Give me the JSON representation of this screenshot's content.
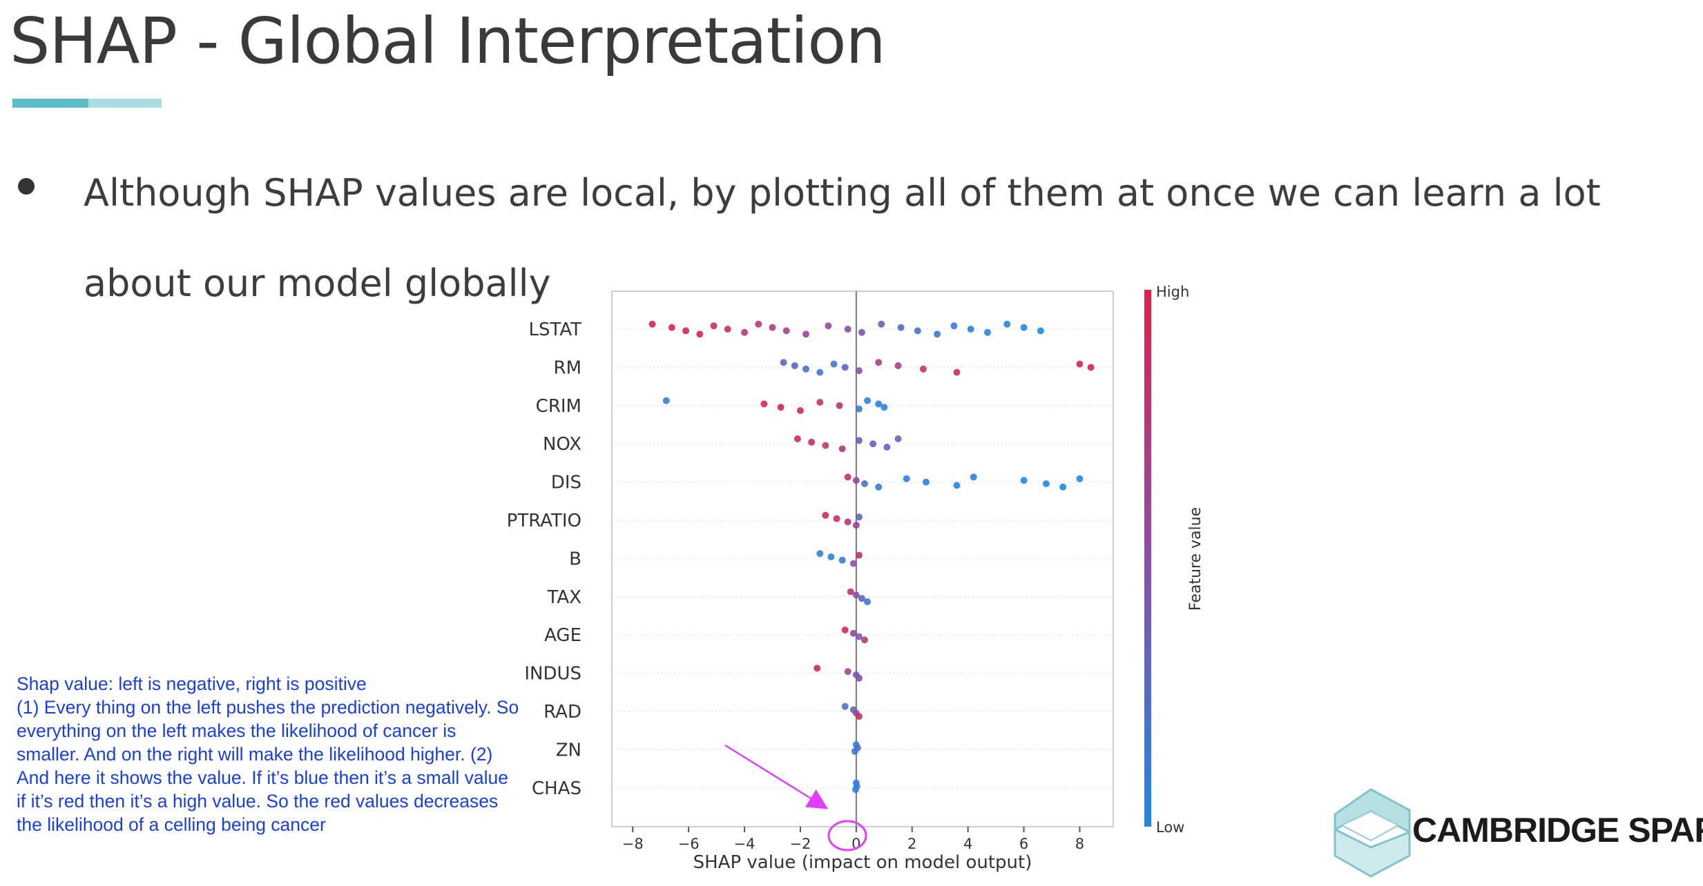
{
  "slide": {
    "title": "SHAP - Global Interpretation",
    "bullet": "Although SHAP values are local, by plotting all of them at once we can learn a lot about our model globally",
    "notes": "Shap value: left is negative, right is positive\n(1) Every thing on the left pushes the prediction negatively. So everything on the left makes the likelihood of cancer is smaller. And on the right will make the likelihood higher. (2) And here it shows the value. If it’s blue then it’s a small value if it’s red then it’s a high value. So the red values decreases the likelihood of a celling being cancer",
    "logo_text": "CAMBRIDGE SPARK"
  },
  "colors": {
    "accent": "#5bbbc6",
    "accent_light": "#a9dde3",
    "high": "#e0204a",
    "low": "#1e88e5",
    "annotation": "#e040fb",
    "notes_text": "#1a3fe0"
  },
  "chart_data": {
    "type": "scatter",
    "subtype": "shap-beeswarm",
    "xlabel": "SHAP value (impact on model output)",
    "xlim": [
      -8.5,
      9.2
    ],
    "xticks": [
      -8,
      -6,
      -4,
      -2,
      0,
      2,
      4,
      6,
      8
    ],
    "xtick_labels": [
      "−8",
      "−6",
      "−4",
      "−2",
      "0",
      "2",
      "4",
      "6",
      "8"
    ],
    "colorbar": {
      "label": "Feature value",
      "high_label": "High",
      "low_label": "Low"
    },
    "features": [
      {
        "name": "LSTAT",
        "points": [
          {
            "x": -7.3,
            "v": 1
          },
          {
            "x": -6.6,
            "v": 0.95
          },
          {
            "x": -6.1,
            "v": 0.95
          },
          {
            "x": -5.6,
            "v": 0.9
          },
          {
            "x": -5.1,
            "v": 0.9
          },
          {
            "x": -4.6,
            "v": 0.85
          },
          {
            "x": -4.0,
            "v": 0.8
          },
          {
            "x": -3.5,
            "v": 0.75
          },
          {
            "x": -3.0,
            "v": 0.7
          },
          {
            "x": -2.5,
            "v": 0.65
          },
          {
            "x": -1.8,
            "v": 0.6
          },
          {
            "x": -1.0,
            "v": 0.55
          },
          {
            "x": -0.3,
            "v": 0.5
          },
          {
            "x": 0.2,
            "v": 0.4
          },
          {
            "x": 0.9,
            "v": 0.35
          },
          {
            "x": 1.6,
            "v": 0.25
          },
          {
            "x": 2.2,
            "v": 0.2
          },
          {
            "x": 2.9,
            "v": 0.15
          },
          {
            "x": 3.5,
            "v": 0.1
          },
          {
            "x": 4.1,
            "v": 0.08
          },
          {
            "x": 4.7,
            "v": 0.05
          },
          {
            "x": 5.4,
            "v": 0.03
          },
          {
            "x": 6.0,
            "v": 0.02
          },
          {
            "x": 6.6,
            "v": 0
          }
        ]
      },
      {
        "name": "RM",
        "points": [
          {
            "x": -2.6,
            "v": 0.3
          },
          {
            "x": -2.2,
            "v": 0.25
          },
          {
            "x": -1.8,
            "v": 0.2
          },
          {
            "x": -1.3,
            "v": 0.15
          },
          {
            "x": -0.8,
            "v": 0.2
          },
          {
            "x": -0.4,
            "v": 0.3
          },
          {
            "x": 0.1,
            "v": 0.45
          },
          {
            "x": 0.8,
            "v": 0.6
          },
          {
            "x": 1.5,
            "v": 0.7
          },
          {
            "x": 2.4,
            "v": 0.8
          },
          {
            "x": 3.6,
            "v": 0.85
          },
          {
            "x": 8.0,
            "v": 0.95
          },
          {
            "x": 8.4,
            "v": 1
          }
        ]
      },
      {
        "name": "CRIM",
        "points": [
          {
            "x": -6.8,
            "v": 0.1
          },
          {
            "x": -3.3,
            "v": 0.9
          },
          {
            "x": -2.7,
            "v": 0.9
          },
          {
            "x": -2.0,
            "v": 0.85
          },
          {
            "x": -1.3,
            "v": 0.8
          },
          {
            "x": -0.6,
            "v": 0.75
          },
          {
            "x": 0.1,
            "v": 0.1
          },
          {
            "x": 0.4,
            "v": 0.05
          },
          {
            "x": 0.8,
            "v": 0.05
          },
          {
            "x": 1.0,
            "v": 0.05
          }
        ]
      },
      {
        "name": "NOX",
        "points": [
          {
            "x": -2.1,
            "v": 0.9
          },
          {
            "x": -1.6,
            "v": 0.85
          },
          {
            "x": -1.1,
            "v": 0.8
          },
          {
            "x": -0.5,
            "v": 0.7
          },
          {
            "x": 0.1,
            "v": 0.4
          },
          {
            "x": 0.6,
            "v": 0.3
          },
          {
            "x": 1.1,
            "v": 0.3
          },
          {
            "x": 1.5,
            "v": 0.35
          }
        ]
      },
      {
        "name": "DIS",
        "points": [
          {
            "x": -0.3,
            "v": 0.85
          },
          {
            "x": 0.0,
            "v": 0.6
          },
          {
            "x": 0.3,
            "v": 0.2
          },
          {
            "x": 0.8,
            "v": 0.1
          },
          {
            "x": 1.8,
            "v": 0.05
          },
          {
            "x": 2.5,
            "v": 0.05
          },
          {
            "x": 3.6,
            "v": 0.05
          },
          {
            "x": 4.2,
            "v": 0.05
          },
          {
            "x": 6.0,
            "v": 0
          },
          {
            "x": 6.8,
            "v": 0
          },
          {
            "x": 7.4,
            "v": 0
          },
          {
            "x": 8.0,
            "v": 0
          }
        ]
      },
      {
        "name": "PTRATIO",
        "points": [
          {
            "x": -1.1,
            "v": 0.9
          },
          {
            "x": -0.7,
            "v": 0.85
          },
          {
            "x": -0.3,
            "v": 0.8
          },
          {
            "x": 0.0,
            "v": 0.6
          },
          {
            "x": 0.1,
            "v": 0.3
          }
        ]
      },
      {
        "name": "B",
        "points": [
          {
            "x": -1.3,
            "v": 0.05
          },
          {
            "x": -0.9,
            "v": 0.05
          },
          {
            "x": -0.5,
            "v": 0.1
          },
          {
            "x": -0.1,
            "v": 0.5
          },
          {
            "x": 0.1,
            "v": 0.8
          }
        ]
      },
      {
        "name": "TAX",
        "points": [
          {
            "x": -0.2,
            "v": 0.8
          },
          {
            "x": 0.0,
            "v": 0.5
          },
          {
            "x": 0.2,
            "v": 0.3
          },
          {
            "x": 0.4,
            "v": 0.15
          }
        ]
      },
      {
        "name": "AGE",
        "points": [
          {
            "x": -0.4,
            "v": 0.9
          },
          {
            "x": -0.1,
            "v": 0.6
          },
          {
            "x": 0.1,
            "v": 0.4
          },
          {
            "x": 0.3,
            "v": 0.7
          }
        ]
      },
      {
        "name": "INDUS",
        "points": [
          {
            "x": -1.4,
            "v": 0.9
          },
          {
            "x": -0.3,
            "v": 0.6
          },
          {
            "x": 0.0,
            "v": 0.4
          },
          {
            "x": 0.1,
            "v": 0.5
          }
        ]
      },
      {
        "name": "RAD",
        "points": [
          {
            "x": -0.4,
            "v": 0.2
          },
          {
            "x": -0.1,
            "v": 0.3
          },
          {
            "x": 0.0,
            "v": 0.6
          },
          {
            "x": 0.1,
            "v": 0.8
          }
        ]
      },
      {
        "name": "ZN",
        "points": [
          {
            "x": 0.0,
            "v": 0.1
          },
          {
            "x": 0.05,
            "v": 0.2
          },
          {
            "x": -0.05,
            "v": 0.15
          }
        ]
      },
      {
        "name": "CHAS",
        "points": [
          {
            "x": 0.0,
            "v": 0.05
          },
          {
            "x": 0.02,
            "v": 0.1
          },
          {
            "x": -0.02,
            "v": 0.05
          }
        ]
      }
    ]
  }
}
